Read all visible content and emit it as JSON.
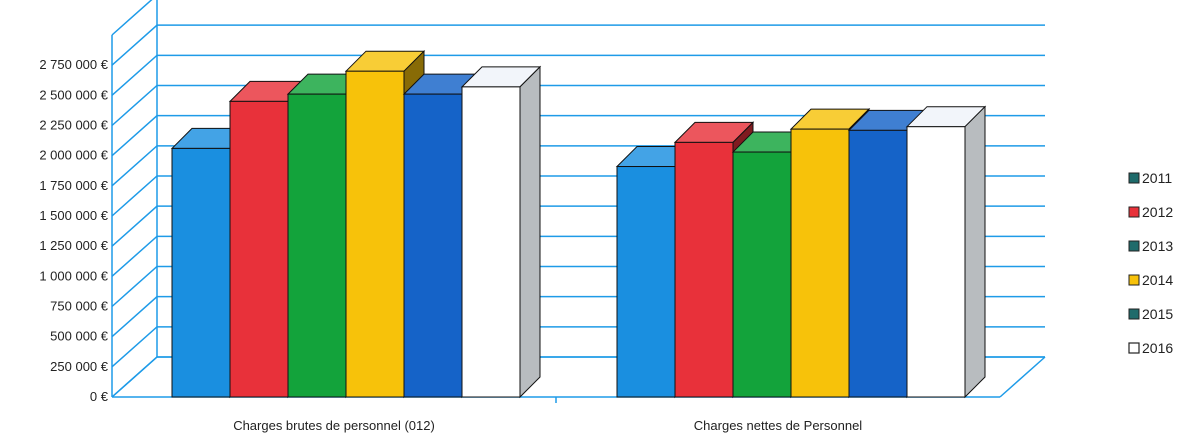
{
  "chart_data": {
    "type": "bar",
    "categories": [
      "Charges brutes de personnel (012)",
      "Charges nettes de Personnel"
    ],
    "series": [
      {
        "name": "2011",
        "values": [
          2060000,
          1910000
        ],
        "color": "#1a8fe0",
        "legend_color": "#1f6b6b",
        "legend_shape": "filled"
      },
      {
        "name": "2012",
        "values": [
          2450000,
          2110000
        ],
        "color": "#e8313a",
        "legend_color": "#e8313a",
        "legend_shape": "filled"
      },
      {
        "name": "2013",
        "values": [
          2510000,
          2030000
        ],
        "color": "#13a33b",
        "legend_color": "#1f6b6b",
        "legend_shape": "filled"
      },
      {
        "name": "2014",
        "values": [
          2700000,
          2220000
        ],
        "color": "#f7c20a",
        "legend_color": "#f7c20a",
        "legend_shape": "filled"
      },
      {
        "name": "2015",
        "values": [
          2510000,
          2210000
        ],
        "color": "#1563c8",
        "legend_color": "#1f6b6b",
        "legend_shape": "filled"
      },
      {
        "name": "2016",
        "values": [
          2570000,
          2240000
        ],
        "color": "#ffffff",
        "legend_color": "#ffffff",
        "legend_shape": "outline"
      }
    ],
    "yticks": [
      "0 €",
      "250 000 €",
      "500 000 €",
      "750 000 €",
      "1 000 000 €",
      "1 250 000 €",
      "1 500 000 €",
      "1 750 000 €",
      "2 000 000 €",
      "2 250 000 €",
      "2 500 000 €",
      "2 750 000 €"
    ],
    "ylim": [
      0,
      3000000
    ],
    "grid": true,
    "legend_position": "right",
    "gridline_color": "#1e9be8",
    "title": "",
    "xlabel": "",
    "ylabel": ""
  }
}
